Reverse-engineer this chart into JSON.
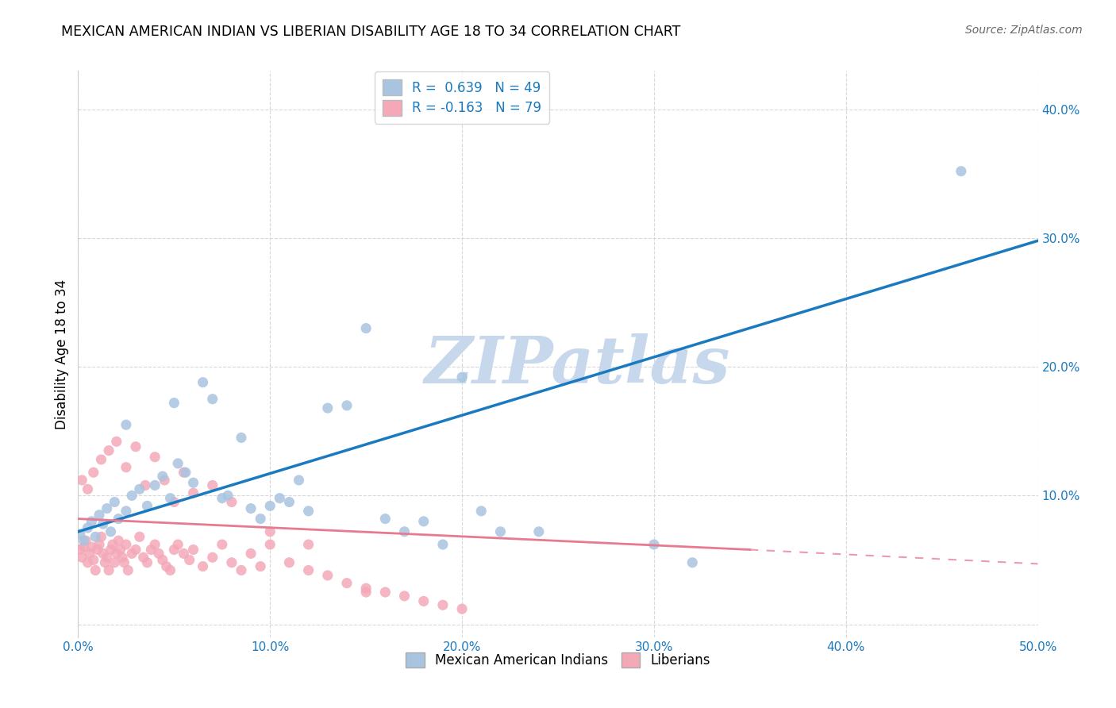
{
  "title": "MEXICAN AMERICAN INDIAN VS LIBERIAN DISABILITY AGE 18 TO 34 CORRELATION CHART",
  "source": "Source: ZipAtlas.com",
  "ylabel": "Disability Age 18 to 34",
  "xlim": [
    0.0,
    0.5
  ],
  "ylim": [
    -0.01,
    0.43
  ],
  "xticks": [
    0.0,
    0.1,
    0.2,
    0.3,
    0.4,
    0.5
  ],
  "yticks": [
    0.0,
    0.1,
    0.2,
    0.3,
    0.4
  ],
  "xticklabels": [
    "0.0%",
    "10.0%",
    "20.0%",
    "30.0%",
    "40.0%",
    "50.0%"
  ],
  "yticklabels": [
    "",
    "10.0%",
    "20.0%",
    "30.0%",
    "40.0%"
  ],
  "blue_R": 0.639,
  "blue_N": 49,
  "pink_R": -0.163,
  "pink_N": 79,
  "blue_color": "#a8c4e0",
  "pink_color": "#f4a8b8",
  "blue_line_color": "#1a7abf",
  "pink_line_color": "#e87a90",
  "blue_line_x0": 0.0,
  "blue_line_y0": 0.072,
  "blue_line_x1": 0.5,
  "blue_line_y1": 0.298,
  "pink_line_solid_x0": 0.0,
  "pink_line_solid_y0": 0.082,
  "pink_line_solid_x1": 0.35,
  "pink_line_solid_y1": 0.058,
  "pink_line_dash_x0": 0.35,
  "pink_line_dash_y0": 0.058,
  "pink_line_dash_x1": 0.5,
  "pink_line_dash_y1": 0.047,
  "blue_scatter_x": [
    0.001,
    0.003,
    0.005,
    0.007,
    0.009,
    0.011,
    0.013,
    0.015,
    0.017,
    0.019,
    0.021,
    0.025,
    0.028,
    0.032,
    0.036,
    0.04,
    0.044,
    0.048,
    0.052,
    0.056,
    0.06,
    0.065,
    0.07,
    0.078,
    0.085,
    0.09,
    0.095,
    0.1,
    0.105,
    0.11,
    0.115,
    0.12,
    0.13,
    0.14,
    0.15,
    0.16,
    0.17,
    0.18,
    0.19,
    0.2,
    0.21,
    0.22,
    0.24,
    0.3,
    0.32,
    0.46,
    0.025,
    0.05,
    0.075
  ],
  "blue_scatter_y": [
    0.07,
    0.065,
    0.075,
    0.08,
    0.068,
    0.085,
    0.078,
    0.09,
    0.072,
    0.095,
    0.082,
    0.088,
    0.1,
    0.105,
    0.092,
    0.108,
    0.115,
    0.098,
    0.125,
    0.118,
    0.11,
    0.188,
    0.175,
    0.1,
    0.145,
    0.09,
    0.082,
    0.092,
    0.098,
    0.095,
    0.112,
    0.088,
    0.168,
    0.17,
    0.23,
    0.082,
    0.072,
    0.08,
    0.062,
    0.192,
    0.088,
    0.072,
    0.072,
    0.062,
    0.048,
    0.352,
    0.155,
    0.172,
    0.098
  ],
  "pink_scatter_x": [
    0.001,
    0.002,
    0.003,
    0.004,
    0.005,
    0.006,
    0.007,
    0.008,
    0.009,
    0.01,
    0.011,
    0.012,
    0.013,
    0.014,
    0.015,
    0.016,
    0.017,
    0.018,
    0.019,
    0.02,
    0.021,
    0.022,
    0.023,
    0.024,
    0.025,
    0.026,
    0.028,
    0.03,
    0.032,
    0.034,
    0.036,
    0.038,
    0.04,
    0.042,
    0.044,
    0.046,
    0.048,
    0.05,
    0.052,
    0.055,
    0.058,
    0.06,
    0.065,
    0.07,
    0.075,
    0.08,
    0.085,
    0.09,
    0.095,
    0.1,
    0.11,
    0.12,
    0.13,
    0.14,
    0.15,
    0.16,
    0.17,
    0.18,
    0.19,
    0.2,
    0.002,
    0.005,
    0.008,
    0.012,
    0.016,
    0.02,
    0.025,
    0.03,
    0.035,
    0.04,
    0.045,
    0.05,
    0.055,
    0.06,
    0.07,
    0.08,
    0.1,
    0.12,
    0.15
  ],
  "pink_scatter_y": [
    0.058,
    0.052,
    0.06,
    0.065,
    0.048,
    0.055,
    0.06,
    0.05,
    0.042,
    0.058,
    0.062,
    0.068,
    0.055,
    0.048,
    0.052,
    0.042,
    0.058,
    0.062,
    0.048,
    0.055,
    0.065,
    0.058,
    0.052,
    0.048,
    0.062,
    0.042,
    0.055,
    0.058,
    0.068,
    0.052,
    0.048,
    0.058,
    0.062,
    0.055,
    0.05,
    0.045,
    0.042,
    0.058,
    0.062,
    0.055,
    0.05,
    0.058,
    0.045,
    0.052,
    0.062,
    0.048,
    0.042,
    0.055,
    0.045,
    0.062,
    0.048,
    0.042,
    0.038,
    0.032,
    0.028,
    0.025,
    0.022,
    0.018,
    0.015,
    0.012,
    0.112,
    0.105,
    0.118,
    0.128,
    0.135,
    0.142,
    0.122,
    0.138,
    0.108,
    0.13,
    0.112,
    0.095,
    0.118,
    0.102,
    0.108,
    0.095,
    0.072,
    0.062,
    0.025
  ],
  "watermark_text": "ZIPatlas",
  "watermark_color": "#c8d8ec",
  "background_color": "#ffffff",
  "grid_color": "#d8d8d8"
}
